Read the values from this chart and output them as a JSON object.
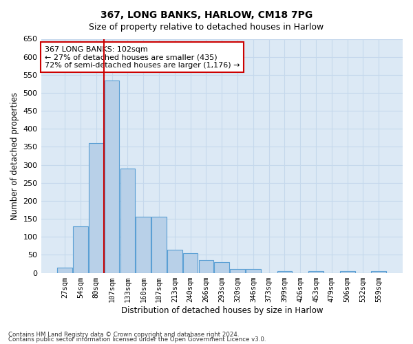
{
  "title": "367, LONG BANKS, HARLOW, CM18 7PG",
  "subtitle": "Size of property relative to detached houses in Harlow",
  "xlabel": "Distribution of detached houses by size in Harlow",
  "ylabel": "Number of detached properties",
  "categories": [
    "27sqm",
    "54sqm",
    "80sqm",
    "107sqm",
    "133sqm",
    "160sqm",
    "187sqm",
    "213sqm",
    "240sqm",
    "266sqm",
    "293sqm",
    "320sqm",
    "346sqm",
    "373sqm",
    "399sqm",
    "426sqm",
    "453sqm",
    "479sqm",
    "506sqm",
    "532sqm",
    "559sqm"
  ],
  "values": [
    15,
    130,
    360,
    535,
    290,
    155,
    155,
    65,
    55,
    35,
    30,
    10,
    10,
    0,
    5,
    0,
    5,
    0,
    5,
    0,
    5
  ],
  "bar_color": "#b8d0e8",
  "bar_edge_color": "#5a9fd4",
  "grid_color": "#c5d8ec",
  "background_color": "#dce9f5",
  "vline_x_index": 3,
  "vline_color": "#cc0000",
  "annotation_text": "367 LONG BANKS: 102sqm\n← 27% of detached houses are smaller (435)\n72% of semi-detached houses are larger (1,176) →",
  "annotation_box_facecolor": "#ffffff",
  "annotation_box_edgecolor": "#cc0000",
  "ylim": [
    0,
    650
  ],
  "yticks": [
    0,
    50,
    100,
    150,
    200,
    250,
    300,
    350,
    400,
    450,
    500,
    550,
    600,
    650
  ],
  "footnote1": "Contains HM Land Registry data © Crown copyright and database right 2024.",
  "footnote2": "Contains public sector information licensed under the Open Government Licence v3.0."
}
